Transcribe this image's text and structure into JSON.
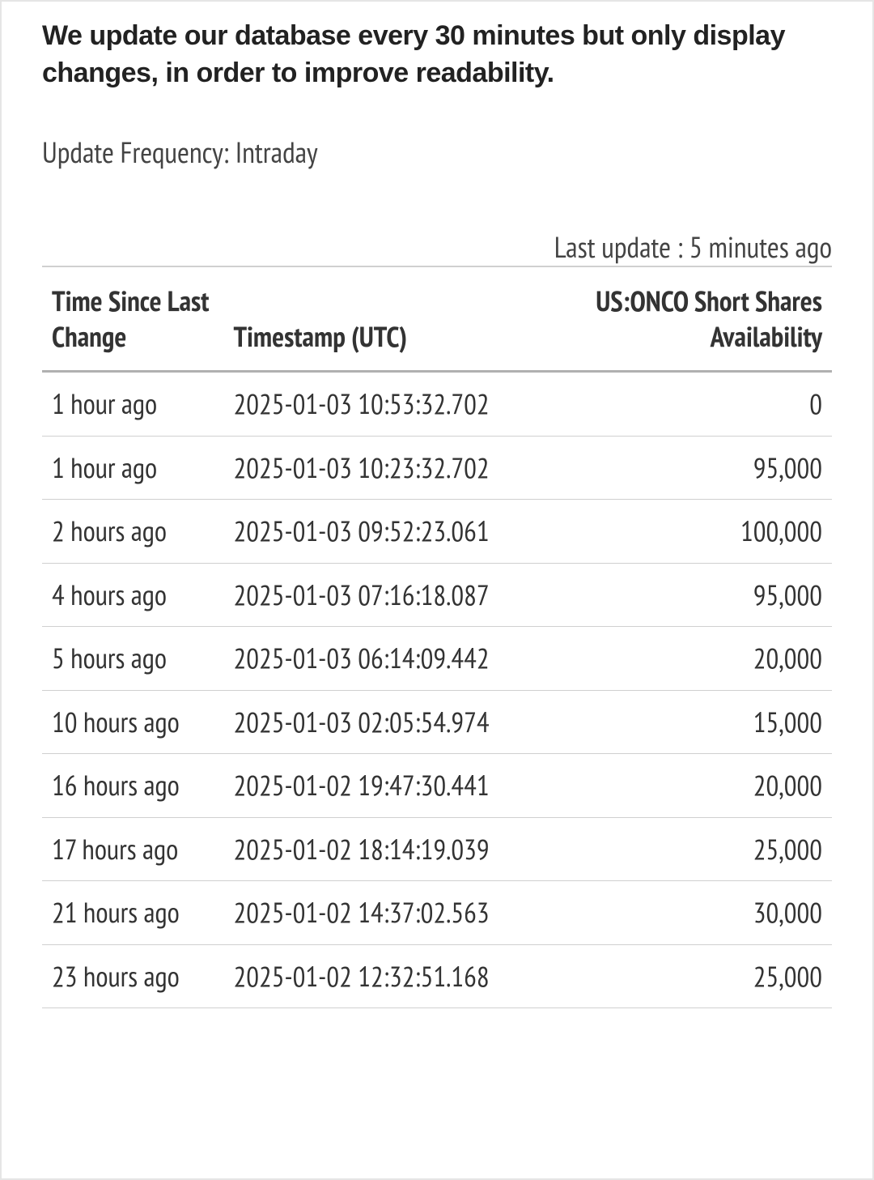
{
  "intro_text": "We update our database every 30 minutes but only display changes, in order to improve readability.",
  "update_frequency_label": "Update Frequency: Intraday",
  "last_update_label": "Last update : 5 minutes ago",
  "table": {
    "columns": {
      "time_since": "Time Since Last Change",
      "timestamp": "Timestamp (UTC)",
      "availability": "US:ONCO Short Shares Availability"
    },
    "rows": [
      {
        "time_since": "1 hour ago",
        "timestamp": "2025-01-03 10:53:32.702",
        "availability": "0"
      },
      {
        "time_since": "1 hour ago",
        "timestamp": "2025-01-03 10:23:32.702",
        "availability": "95,000"
      },
      {
        "time_since": "2 hours ago",
        "timestamp": "2025-01-03 09:52:23.061",
        "availability": "100,000"
      },
      {
        "time_since": "4 hours ago",
        "timestamp": "2025-01-03 07:16:18.087",
        "availability": "95,000"
      },
      {
        "time_since": "5 hours ago",
        "timestamp": "2025-01-03 06:14:09.442",
        "availability": "20,000"
      },
      {
        "time_since": "10 hours ago",
        "timestamp": "2025-01-03 02:05:54.974",
        "availability": "15,000"
      },
      {
        "time_since": "16 hours ago",
        "timestamp": "2025-01-02 19:47:30.441",
        "availability": "20,000"
      },
      {
        "time_since": "17 hours ago",
        "timestamp": "2025-01-02 18:14:19.039",
        "availability": "25,000"
      },
      {
        "time_since": "21 hours ago",
        "timestamp": "2025-01-02 14:37:02.563",
        "availability": "30,000"
      },
      {
        "time_since": "23 hours ago",
        "timestamp": "2025-01-02 12:32:51.168",
        "availability": "25,000"
      }
    ]
  },
  "style": {
    "background_color": "#ffffff",
    "border_color": "#e5e5e5",
    "text_color": "#333333",
    "header_border_top": "#d0d0d0",
    "header_border_bottom": "#b0b0b0",
    "row_border": "#d0d0d0",
    "intro_fontsize": 34,
    "body_fontsize": 35,
    "font_family_condensed": "PT Sans Narrow, Arial Narrow, Arial"
  }
}
